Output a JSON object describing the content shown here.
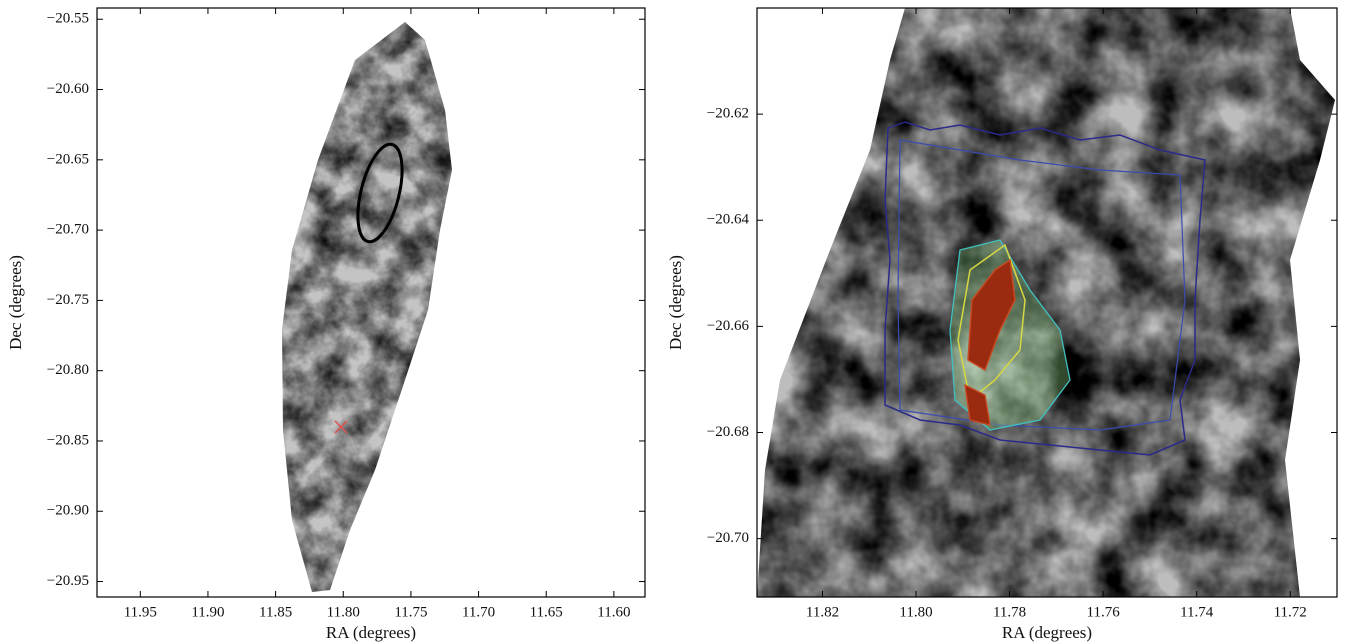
{
  "chart_data": [
    {
      "type": "image",
      "xlabel": "RA (degrees)",
      "ylabel": "Dec (degrees)",
      "xlim": [
        11.982,
        11.577
      ],
      "ylim": [
        -20.961,
        -20.542
      ],
      "xticks": [
        11.95,
        {
          "value": 11.9,
          "label": "11.90"
        },
        11.85,
        {
          "value": 11.8,
          "label": "11.80"
        },
        11.75,
        {
          "value": 11.7,
          "label": "11.70"
        },
        11.65,
        {
          "value": 11.6,
          "label": "11.60"
        }
      ],
      "yticks": [
        {
          "value": -20.55,
          "label": "−20.55"
        },
        {
          "value": -20.6,
          "label": "−20.60"
        },
        {
          "value": -20.65,
          "label": "−20.65"
        },
        {
          "value": -20.7,
          "label": "−20.70"
        },
        {
          "value": -20.75,
          "label": "−20.75"
        },
        {
          "value": -20.8,
          "label": "−20.80"
        },
        {
          "value": -20.85,
          "label": "−20.85"
        },
        {
          "value": -20.9,
          "label": "−20.90"
        },
        {
          "value": -20.95,
          "label": "−20.95"
        }
      ]
    },
    {
      "type": "image",
      "xlabel": "RA (degrees)",
      "ylabel": "Dec (degrees)",
      "xlim": [
        11.834,
        11.71
      ],
      "ylim": [
        -20.711,
        -20.6
      ],
      "xticks": [
        11.82,
        {
          "value": 11.8,
          "label": "11.80"
        },
        11.78,
        11.76,
        11.74,
        11.72
      ],
      "yticks": [
        {
          "value": -20.62,
          "label": "−20.62"
        },
        {
          "value": -20.64,
          "label": "−20.64"
        },
        {
          "value": -20.66,
          "label": "−20.66"
        },
        {
          "value": -20.68,
          "label": "−20.68"
        },
        {
          "value": -20.7,
          "label": "−20.70"
        }
      ]
    }
  ]
}
